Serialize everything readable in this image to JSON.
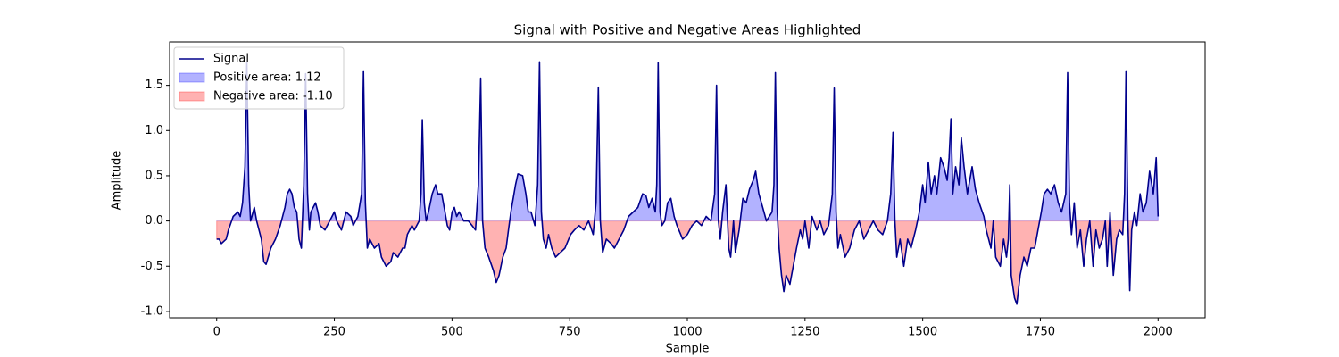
{
  "chart_data": {
    "type": "line",
    "title": "Signal with Positive and Negative Areas Highlighted",
    "xlabel": "Sample",
    "ylabel": "Amplitude",
    "x": [
      0,
      5,
      10,
      20,
      25,
      35,
      45,
      50,
      55,
      60,
      64,
      68,
      72,
      80,
      85,
      95,
      100,
      105,
      115,
      125,
      135,
      145,
      150,
      155,
      160,
      165,
      170,
      175,
      180,
      185,
      189,
      193,
      197,
      200,
      210,
      215,
      220,
      230,
      240,
      250,
      255,
      265,
      275,
      285,
      290,
      300,
      308,
      312,
      316,
      320,
      325,
      335,
      345,
      350,
      360,
      370,
      375,
      385,
      395,
      400,
      405,
      415,
      420,
      430,
      434,
      437,
      441,
      445,
      450,
      458,
      465,
      470,
      478,
      485,
      490,
      495,
      500,
      505,
      510,
      515,
      525,
      535,
      550,
      556,
      561,
      565,
      570,
      578,
      588,
      594,
      600,
      608,
      615,
      620,
      625,
      635,
      640,
      650,
      657,
      662,
      668,
      676,
      682,
      686,
      690,
      694,
      700,
      705,
      712,
      720,
      730,
      740,
      752,
      760,
      770,
      780,
      790,
      800,
      806,
      811,
      815,
      820,
      828,
      838,
      845,
      855,
      865,
      875,
      885,
      895,
      905,
      912,
      918,
      925,
      932,
      935,
      938,
      942,
      946,
      952,
      958,
      965,
      972,
      978,
      990,
      1000,
      1010,
      1020,
      1030,
      1040,
      1050,
      1058,
      1062,
      1066,
      1070,
      1075,
      1082,
      1088,
      1092,
      1098,
      1102,
      1110,
      1118,
      1125,
      1132,
      1140,
      1145,
      1152,
      1160,
      1168,
      1180,
      1184,
      1187,
      1191,
      1195,
      1200,
      1205,
      1210,
      1218,
      1225,
      1232,
      1240,
      1245,
      1250,
      1258,
      1265,
      1275,
      1282,
      1290,
      1300,
      1308,
      1312,
      1316,
      1320,
      1325,
      1335,
      1345,
      1355,
      1365,
      1375,
      1385,
      1395,
      1405,
      1415,
      1425,
      1432,
      1437,
      1441,
      1445,
      1452,
      1460,
      1468,
      1475,
      1485,
      1493,
      1500,
      1505,
      1512,
      1518,
      1525,
      1530,
      1538,
      1545,
      1552,
      1556,
      1560,
      1564,
      1570,
      1577,
      1582,
      1588,
      1595,
      1605,
      1612,
      1620,
      1630,
      1635,
      1640,
      1645,
      1650,
      1655,
      1665,
      1672,
      1678,
      1682,
      1685,
      1688,
      1695,
      1700,
      1707,
      1715,
      1722,
      1730,
      1738,
      1745,
      1752,
      1758,
      1765,
      1772,
      1780,
      1788,
      1795,
      1804,
      1808,
      1812,
      1816,
      1822,
      1828,
      1835,
      1842,
      1848,
      1855,
      1862,
      1868,
      1875,
      1882,
      1888,
      1892,
      1898,
      1905,
      1912,
      1918,
      1925,
      1929,
      1932,
      1936,
      1940,
      1944,
      1950,
      1955,
      1962,
      1968,
      1975,
      1982,
      1990,
      1996,
      2000
    ],
    "series": [
      {
        "name": "Signal",
        "color": "#00008b",
        "values": [
          -0.2,
          -0.2,
          -0.25,
          -0.2,
          -0.1,
          0.05,
          0.1,
          0.05,
          0.2,
          0.6,
          1.75,
          0.4,
          0.0,
          0.15,
          0.0,
          -0.2,
          -0.45,
          -0.48,
          -0.3,
          -0.2,
          -0.05,
          0.15,
          0.3,
          0.35,
          0.3,
          0.15,
          0.1,
          -0.2,
          -0.3,
          0.4,
          1.63,
          0.3,
          -0.1,
          0.1,
          0.2,
          0.1,
          -0.05,
          -0.1,
          0.0,
          0.1,
          0.0,
          -0.1,
          0.1,
          0.05,
          -0.05,
          0.05,
          0.3,
          1.66,
          0.2,
          -0.3,
          -0.2,
          -0.3,
          -0.25,
          -0.4,
          -0.5,
          -0.45,
          -0.35,
          -0.4,
          -0.3,
          -0.3,
          -0.15,
          -0.05,
          -0.1,
          0.0,
          0.3,
          1.12,
          0.2,
          0.0,
          0.1,
          0.3,
          0.4,
          0.3,
          0.3,
          0.1,
          -0.05,
          -0.1,
          0.1,
          0.15,
          0.05,
          0.1,
          0.0,
          0.0,
          -0.1,
          0.4,
          1.58,
          0.0,
          -0.3,
          -0.4,
          -0.55,
          -0.68,
          -0.6,
          -0.4,
          -0.3,
          -0.1,
          0.1,
          0.4,
          0.52,
          0.5,
          0.3,
          0.1,
          0.1,
          -0.05,
          0.4,
          1.76,
          0.1,
          -0.2,
          -0.3,
          -0.15,
          -0.3,
          -0.4,
          -0.35,
          -0.3,
          -0.15,
          -0.1,
          -0.05,
          -0.1,
          0.0,
          -0.15,
          0.2,
          1.48,
          0.0,
          -0.35,
          -0.2,
          -0.25,
          -0.3,
          -0.2,
          -0.1,
          0.05,
          0.1,
          0.15,
          0.3,
          0.28,
          0.15,
          0.25,
          0.1,
          0.4,
          1.75,
          0.1,
          -0.05,
          0.0,
          0.2,
          0.25,
          0.05,
          -0.05,
          -0.2,
          -0.15,
          -0.05,
          0.0,
          -0.05,
          0.05,
          0.0,
          0.3,
          1.5,
          0.0,
          -0.2,
          0.1,
          0.4,
          -0.3,
          -0.4,
          0.0,
          -0.35,
          -0.1,
          0.25,
          0.2,
          0.35,
          0.45,
          0.55,
          0.3,
          0.15,
          0.0,
          0.1,
          0.4,
          1.64,
          0.1,
          -0.3,
          -0.6,
          -0.78,
          -0.6,
          -0.7,
          -0.5,
          -0.3,
          -0.1,
          -0.2,
          0.0,
          -0.3,
          0.05,
          -0.1,
          0.0,
          -0.15,
          -0.05,
          0.3,
          1.47,
          0.1,
          -0.3,
          -0.15,
          -0.4,
          -0.3,
          -0.1,
          0.0,
          -0.2,
          -0.1,
          0.0,
          -0.1,
          -0.15,
          0.0,
          0.3,
          0.98,
          0.0,
          -0.4,
          -0.2,
          -0.5,
          -0.2,
          -0.3,
          -0.1,
          0.1,
          0.4,
          0.2,
          0.65,
          0.3,
          0.5,
          0.3,
          0.7,
          0.6,
          0.45,
          0.7,
          1.13,
          0.3,
          0.6,
          0.4,
          0.92,
          0.6,
          0.3,
          0.6,
          0.35,
          0.2,
          0.05,
          -0.1,
          -0.2,
          -0.3,
          0.0,
          -0.4,
          -0.5,
          -0.2,
          -0.4,
          -0.2,
          0.4,
          -0.6,
          -0.85,
          -0.92,
          -0.6,
          -0.4,
          -0.5,
          -0.3,
          -0.3,
          -0.1,
          0.1,
          0.3,
          0.35,
          0.3,
          0.4,
          0.2,
          0.1,
          0.3,
          1.64,
          0.2,
          -0.15,
          0.2,
          -0.3,
          -0.1,
          -0.5,
          -0.2,
          0.0,
          -0.5,
          -0.1,
          -0.3,
          -0.2,
          0.0,
          -0.5,
          0.1,
          -0.6,
          -0.2,
          -0.1,
          -0.15,
          0.3,
          1.66,
          0.0,
          -0.77,
          -0.1,
          0.1,
          -0.05,
          0.3,
          0.1,
          0.2,
          0.55,
          0.3,
          0.7,
          0.05
        ]
      }
    ],
    "fills": [
      {
        "name": "Positive area: 1.12",
        "color": "#0000ff",
        "where": "above"
      },
      {
        "name": "Negative area: -1.10",
        "color": "#ff0000",
        "where": "below"
      }
    ],
    "fill_alpha": 0.3,
    "xlim": [
      -100,
      2100
    ],
    "xticks": [
      0,
      250,
      500,
      750,
      1000,
      1250,
      1500,
      1750,
      2000
    ],
    "ylim": [
      -1.07,
      1.98
    ],
    "yticks": [
      {
        "value": -1.0,
        "label": "-1.0"
      },
      -0.5,
      {
        "value": 0.0,
        "label": "0.0"
      },
      0.5,
      {
        "value": 1.0,
        "label": "1.0"
      },
      1.5
    ],
    "legend": "upper left"
  }
}
